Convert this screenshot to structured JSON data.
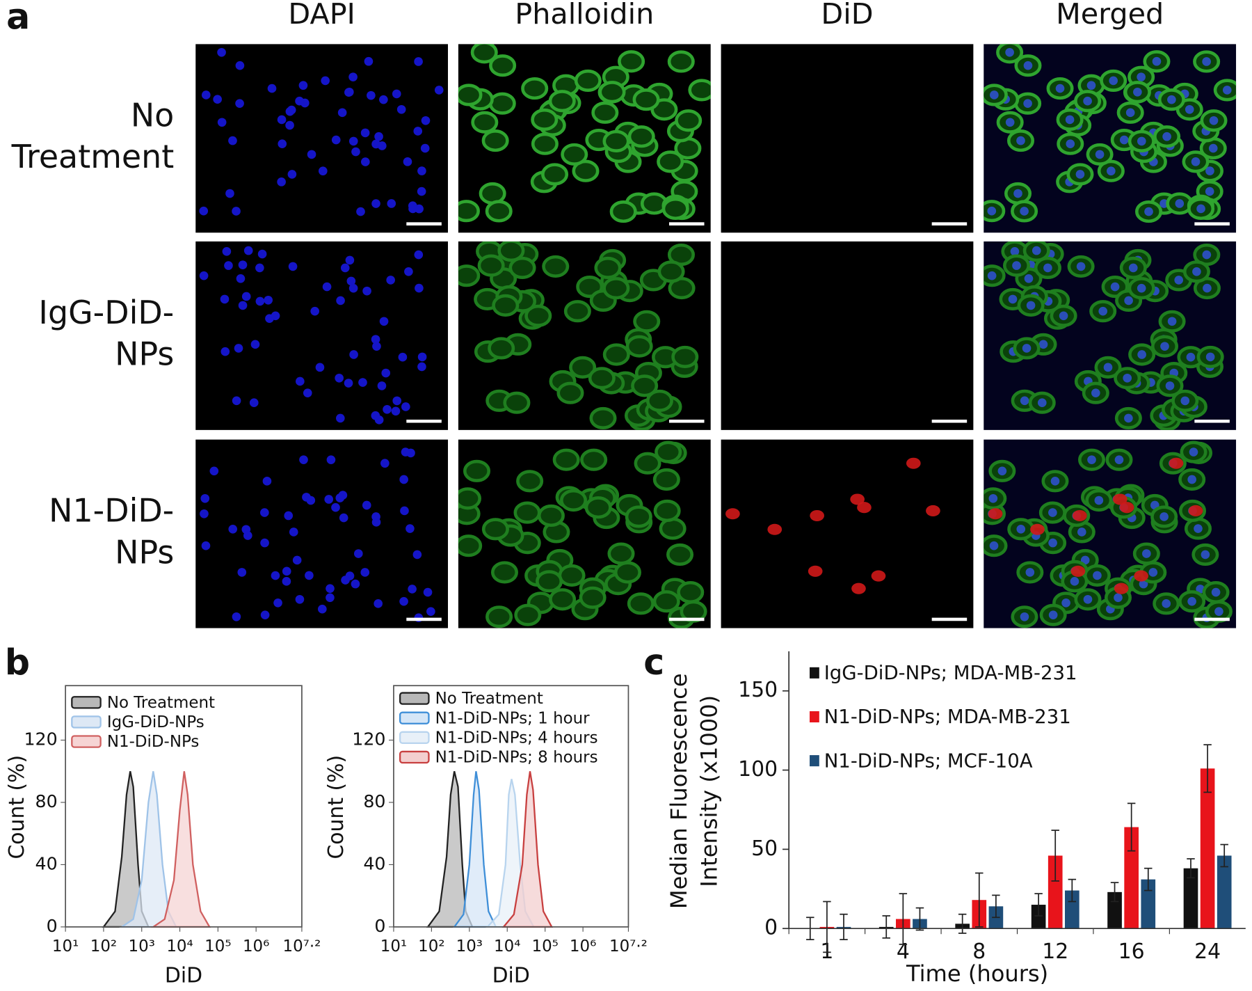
{
  "panel_labels": [
    "a",
    "b",
    "c"
  ],
  "images": {
    "columns": [
      "DAPI",
      "Phalloidin",
      "DiD",
      "Merged"
    ],
    "rows": [
      [
        "No",
        "Treatment"
      ],
      [
        "IgG-DiD-",
        "NPs"
      ],
      [
        "N1-DiD-",
        "NPs"
      ]
    ]
  },
  "chart_data": [
    {
      "type": "area",
      "xlabel": "DiD",
      "ylabel": "Count (%)",
      "xscale": "log",
      "xlim": [
        10,
        15848932
      ],
      "xticks": [
        {
          "value": 10,
          "label": "10¹"
        },
        {
          "value": 100,
          "label": "10²"
        },
        {
          "value": 1000,
          "label": "10³"
        },
        {
          "value": 10000,
          "label": "10⁴"
        },
        {
          "value": 100000,
          "label": "10⁵"
        },
        {
          "value": 1000000,
          "label": "10⁶"
        },
        {
          "value": 15848932,
          "label": "10⁷·²"
        }
      ],
      "ylim": [
        0,
        155
      ],
      "yticks": [
        0,
        40,
        80,
        120
      ],
      "legend": "upper left",
      "series": [
        {
          "name": "No Treatment",
          "color": "#222222",
          "fill": "#b8b8b8",
          "x": [
            100,
            200,
            300,
            400,
            500,
            600,
            800,
            1000,
            1500
          ],
          "values": [
            0,
            10,
            45,
            85,
            100,
            90,
            40,
            10,
            0
          ]
        },
        {
          "name": "IgG-DiD-NPs",
          "color": "#9fc3e8",
          "fill": "#dde8f5",
          "x": [
            300,
            600,
            1000,
            1500,
            2000,
            2500,
            3500,
            5000,
            8000
          ],
          "values": [
            0,
            5,
            30,
            80,
            100,
            85,
            40,
            10,
            0
          ]
        },
        {
          "name": "N1-DiD-NPs",
          "color": "#d06060",
          "fill": "#f6d4d4",
          "x": [
            2000,
            4000,
            7000,
            10000,
            13000,
            16000,
            22000,
            35000,
            60000
          ],
          "values": [
            0,
            5,
            30,
            75,
            100,
            85,
            40,
            10,
            0
          ]
        }
      ]
    },
    {
      "type": "area",
      "xlabel": "DiD",
      "ylabel": "Count (%)",
      "xscale": "log",
      "xlim": [
        10,
        15848932
      ],
      "xticks": [
        {
          "value": 10,
          "label": "10¹"
        },
        {
          "value": 100,
          "label": "10²"
        },
        {
          "value": 1000,
          "label": "10³"
        },
        {
          "value": 10000,
          "label": "10⁴"
        },
        {
          "value": 100000,
          "label": "10⁵"
        },
        {
          "value": 1000000,
          "label": "10⁶"
        },
        {
          "value": 15848932,
          "label": "10⁷·²"
        }
      ],
      "ylim": [
        0,
        155
      ],
      "yticks": [
        0,
        40,
        80,
        120
      ],
      "legend": "upper left",
      "series": [
        {
          "name": "No Treatment",
          "color": "#222222",
          "fill": "#b8b8b8",
          "x": [
            80,
            160,
            250,
            320,
            400,
            500,
            650,
            800,
            1200
          ],
          "values": [
            0,
            10,
            45,
            85,
            100,
            90,
            40,
            10,
            0
          ]
        },
        {
          "name": "N1-DiD-NPs; 1 hour",
          "color": "#3f8fd8",
          "fill": "#d5e6f7",
          "x": [
            400,
            700,
            1000,
            1300,
            1500,
            1800,
            2400,
            3200,
            5000
          ],
          "values": [
            0,
            8,
            40,
            85,
            100,
            88,
            40,
            10,
            0
          ]
        },
        {
          "name": "N1-DiD-NPs; 4 hours",
          "color": "#b8d4ee",
          "fill": "#e8f0f8",
          "x": [
            3000,
            6000,
            9000,
            11000,
            13000,
            16000,
            22000,
            30000,
            50000
          ],
          "values": [
            0,
            8,
            40,
            85,
            95,
            85,
            40,
            10,
            0
          ]
        },
        {
          "name": "N1-DiD-NPs; 8 hours",
          "color": "#c84040",
          "fill": "#f3cfcf",
          "x": [
            8000,
            15000,
            25000,
            33000,
            40000,
            48000,
            65000,
            90000,
            150000
          ],
          "values": [
            0,
            8,
            40,
            85,
            100,
            88,
            40,
            10,
            0
          ]
        }
      ]
    },
    {
      "type": "bar",
      "xlabel": "Time (hours)",
      "ylabel": [
        "Median Fluorescence",
        "Intensity (x1000)"
      ],
      "categories": [
        "1",
        "4",
        "8",
        "12",
        "16",
        "24"
      ],
      "ylim": [
        0,
        175
      ],
      "yticks": [
        0,
        50,
        100,
        150
      ],
      "legend": "upper left",
      "series": [
        {
          "name": "IgG-DiD-NPs; MDA-MB-231",
          "color": "#111111",
          "values": [
            0,
            1,
            3,
            15,
            23,
            38
          ],
          "errors": [
            7,
            7,
            6,
            7,
            6,
            6
          ]
        },
        {
          "name": "N1-DiD-NPs; MDA-MB-231",
          "color": "#e8141b",
          "values": [
            1,
            6,
            18,
            46,
            64,
            101
          ],
          "errors": [
            16,
            16,
            17,
            16,
            15,
            15
          ]
        },
        {
          "name": "N1-DiD-NPs; MCF-10A",
          "color": "#1f4e79",
          "values": [
            1,
            6,
            14,
            24,
            31,
            46
          ],
          "errors": [
            8,
            7,
            7,
            7,
            7,
            7
          ]
        }
      ]
    }
  ]
}
